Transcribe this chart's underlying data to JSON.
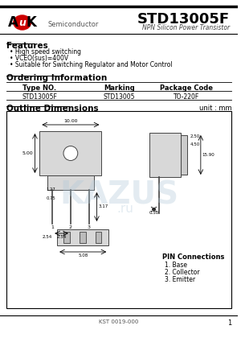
{
  "title": "STD13005F",
  "subtitle": "NPN Silicon Power Transistor",
  "company": "Semiconductor",
  "features_title": "Features",
  "features": [
    "High speed switching",
    "VCEO(sus)=400V",
    "Suitable for Switching Regulator and Motor Control"
  ],
  "ordering_title": "Ordering Information",
  "table_headers": [
    "Type NO.",
    "Marking",
    "Package Code"
  ],
  "table_row": [
    "STD13005F",
    "STD13005",
    "TO-220F"
  ],
  "outline_title": "Outline Dimensions",
  "unit_label": "unit : mm",
  "pin_connections_title": "PIN Connections",
  "pin_connections": [
    "1. Base",
    "2. Collector",
    "3. Emitter"
  ],
  "footer": "KST 0019-000",
  "page": "1",
  "watermark_color": "#b0c8d8"
}
